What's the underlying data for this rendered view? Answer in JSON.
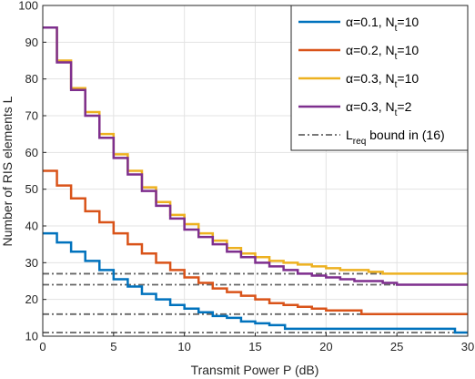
{
  "chart_data": {
    "type": "line",
    "title": "",
    "xlabel": "Transmit Power P (dB)",
    "ylabel": "Number of RIS elements L",
    "xlim": [
      0,
      30
    ],
    "ylim": [
      10,
      100
    ],
    "xticks": [
      "0",
      "5",
      "10",
      "15",
      "20",
      "25",
      "30"
    ],
    "yticks": [
      "10",
      "20",
      "30",
      "40",
      "50",
      "60",
      "70",
      "80",
      "90",
      "100"
    ],
    "grid": true,
    "legend_position": "top-right",
    "series": [
      {
        "name": "α=0.1, N_t=10",
        "legend": {
          "prefix": "α=0.1, N",
          "sub": "t",
          "suffix": "=10"
        },
        "color": "#0072BD",
        "style": "solid",
        "x": [
          0,
          1,
          2,
          3,
          4,
          5,
          6,
          7,
          8,
          9,
          10,
          11,
          12,
          13,
          14,
          15,
          16,
          17,
          17.1,
          20,
          25,
          29,
          29.1,
          30
        ],
        "y": [
          38,
          35.5,
          33,
          30.5,
          28,
          25.5,
          23.5,
          21.5,
          20,
          18.5,
          17.5,
          16.5,
          15.5,
          15,
          14,
          13.5,
          13,
          13,
          12,
          12,
          12,
          12,
          11,
          11
        ]
      },
      {
        "name": "α=0.2, N_t=10",
        "legend": {
          "prefix": "α=0.2, N",
          "sub": "t",
          "suffix": "=10"
        },
        "color": "#D95319",
        "style": "solid",
        "x": [
          0,
          1,
          2,
          3,
          4,
          5,
          6,
          7,
          8,
          9,
          10,
          11,
          12,
          13,
          14,
          15,
          16,
          17,
          18,
          19,
          20,
          21,
          22,
          22.5,
          25,
          30
        ],
        "y": [
          55,
          51,
          47.5,
          44,
          41,
          38,
          35,
          32.5,
          30,
          28,
          26,
          24.5,
          23,
          22,
          21,
          20,
          19,
          18.5,
          18,
          17.5,
          17,
          17,
          17,
          16,
          16,
          16
        ]
      },
      {
        "name": "α=0.3, N_t=10",
        "legend": {
          "prefix": "α=0.3, N",
          "sub": "t",
          "suffix": "=10"
        },
        "color": "#EDB120",
        "style": "solid",
        "x": [
          0,
          1,
          2,
          3,
          4,
          5,
          6,
          7,
          8,
          9,
          10,
          11,
          12,
          13,
          14,
          15,
          16,
          17,
          18,
          19,
          20,
          21,
          22,
          23,
          24,
          25,
          30
        ],
        "y": [
          94,
          85,
          77.5,
          71,
          65,
          59.5,
          55,
          50.5,
          46.5,
          43,
          40.5,
          38,
          36,
          34,
          32.5,
          31.5,
          30.5,
          30,
          29.5,
          29,
          28.5,
          28,
          28,
          27.5,
          27,
          27,
          27
        ]
      },
      {
        "name": "α=0.3, N_t=2",
        "legend": {
          "prefix": "α=0.3, N",
          "sub": "t",
          "suffix": "=2"
        },
        "color": "#7E2F8E",
        "style": "solid",
        "x": [
          0,
          1,
          2,
          3,
          4,
          5,
          6,
          7,
          8,
          9,
          10,
          11,
          12,
          13,
          14,
          15,
          16,
          17,
          18,
          19,
          20,
          21,
          22,
          23,
          24,
          25,
          30
        ],
        "y": [
          94,
          84.5,
          77,
          70,
          64,
          58.5,
          54,
          49.5,
          45.5,
          42,
          39,
          37,
          35,
          33,
          31.5,
          30,
          29,
          28,
          27,
          26.5,
          26,
          25.5,
          25,
          25,
          24.5,
          24,
          24
        ]
      }
    ],
    "bounds": {
      "name": "L_req bound in (16)",
      "legend": {
        "prefix": "L",
        "sub": "req",
        "suffix": " bound in (16)"
      },
      "color": "#666666",
      "style": "dashdot",
      "values": [
        11,
        16,
        24,
        27
      ]
    }
  }
}
